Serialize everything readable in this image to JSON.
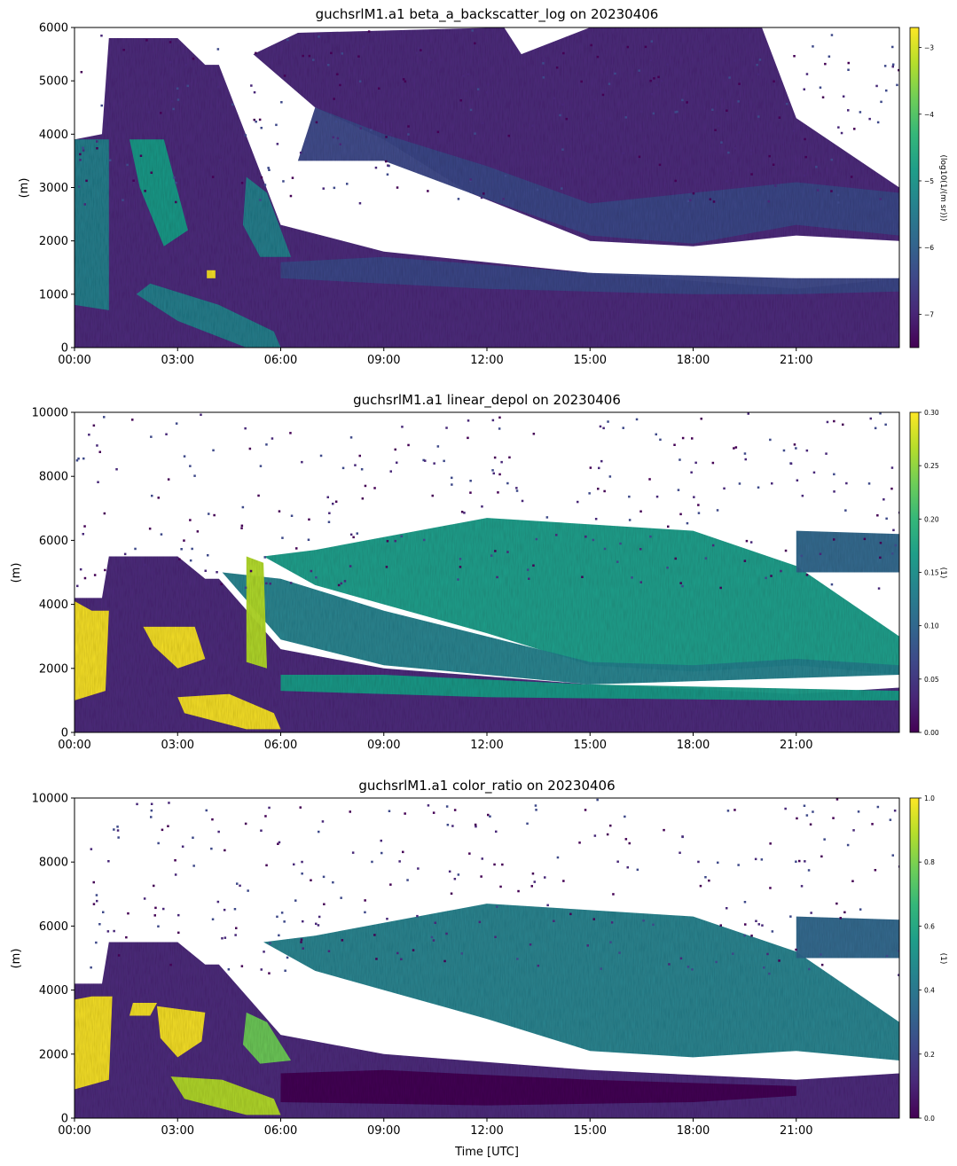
{
  "colormap": {
    "name": "viridis",
    "stops": [
      "#440154",
      "#482878",
      "#3e4989",
      "#31688e",
      "#26828e",
      "#1f9e89",
      "#35b779",
      "#6ece58",
      "#b5de2b",
      "#fde725"
    ]
  },
  "chart_data": [
    {
      "type": "heatmap",
      "title": "guchsrlM1.a1 beta_a_backscatter_log on 20230406",
      "xlabel": "",
      "ylabel": "(m)",
      "x_tick_labels": [
        "00:00",
        "03:00",
        "06:00",
        "09:00",
        "12:00",
        "15:00",
        "18:00",
        "21:00"
      ],
      "xlim_hours": [
        0,
        24
      ],
      "ylim": [
        0,
        6000
      ],
      "y_ticks": [
        0,
        1000,
        2000,
        3000,
        4000,
        5000,
        6000
      ],
      "colorbar": {
        "label": "(log10(1/(m sr)))",
        "range": [
          -7.5,
          -2.7
        ],
        "ticks": [
          -3,
          -4,
          -5,
          -6,
          -7
        ]
      },
      "grid": false
    },
    {
      "type": "heatmap",
      "title": "guchsrlM1.a1 linear_depol on 20230406",
      "xlabel": "",
      "ylabel": "(m)",
      "x_tick_labels": [
        "00:00",
        "03:00",
        "06:00",
        "09:00",
        "12:00",
        "15:00",
        "18:00",
        "21:00"
      ],
      "xlim_hours": [
        0,
        24
      ],
      "ylim": [
        0,
        10000
      ],
      "y_ticks": [
        0,
        2000,
        4000,
        6000,
        8000,
        10000
      ],
      "colorbar": {
        "label": "(1)",
        "range": [
          0,
          0.3
        ],
        "ticks": [
          "0.00",
          "0.05",
          "0.10",
          "0.15",
          "0.20",
          "0.25",
          "0.30"
        ]
      },
      "grid": false
    },
    {
      "type": "heatmap",
      "title": "guchsrlM1.a1 color_ratio on 20230406",
      "xlabel": "Time [UTC]",
      "ylabel": "(m)",
      "x_tick_labels": [
        "00:00",
        "03:00",
        "06:00",
        "09:00",
        "12:00",
        "15:00",
        "18:00",
        "21:00"
      ],
      "xlim_hours": [
        0,
        24
      ],
      "ylim": [
        0,
        10000
      ],
      "y_ticks": [
        0,
        2000,
        4000,
        6000,
        8000,
        10000
      ],
      "colorbar": {
        "label": "(1)",
        "range": [
          0,
          1
        ],
        "ticks": [
          "0.0",
          "0.2",
          "0.4",
          "0.6",
          "0.8",
          "1.0"
        ]
      },
      "grid": false
    }
  ]
}
